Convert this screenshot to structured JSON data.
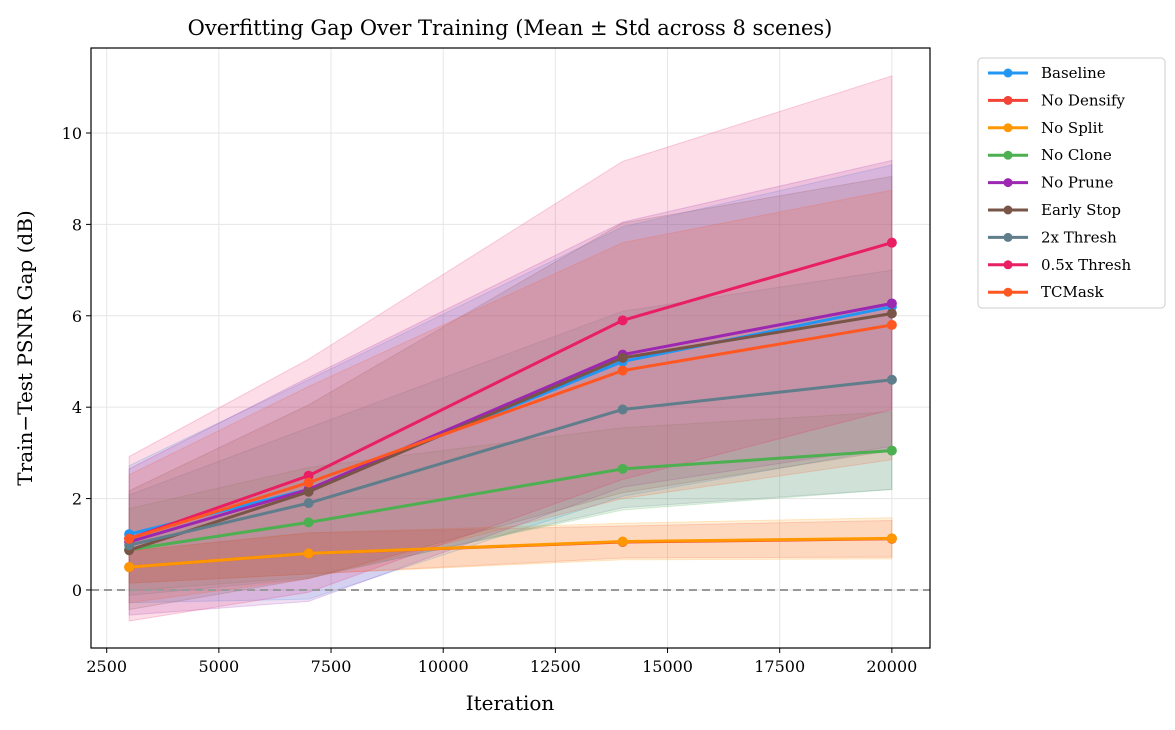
{
  "chart_data": {
    "type": "line",
    "title": "Overfitting Gap Over Training (Mean ± Std across 8 scenes)",
    "xlabel": "Iteration",
    "ylabel": "Train−Test PSNR Gap (dB)",
    "x": [
      3000,
      7000,
      14000,
      20000
    ],
    "xlim": [
      2150,
      20850
    ],
    "ylim": [
      -1.27,
      11.86
    ],
    "xticks": [
      2500,
      5000,
      7500,
      10000,
      12500,
      15000,
      17500,
      20000
    ],
    "yticks": [
      0,
      2,
      4,
      6,
      8,
      10
    ],
    "grid": true,
    "reference_line": {
      "y": 0,
      "style": "dashed",
      "color": "#999999"
    },
    "legend_position": "outside-right-top",
    "series": [
      {
        "name": "Baseline",
        "color": "#2196F3",
        "values": [
          1.22,
          2.2,
          5.0,
          6.2
        ],
        "std": [
          1.5,
          2.4,
          2.95,
          3.1
        ]
      },
      {
        "name": "No Densify",
        "color": "#F44336",
        "values": [
          0.5,
          0.8,
          1.05,
          1.12
        ],
        "std": [
          0.35,
          0.45,
          0.35,
          0.4
        ]
      },
      {
        "name": "No Split",
        "color": "#FF9800",
        "values": [
          0.5,
          0.8,
          1.06,
          1.13
        ],
        "std": [
          0.35,
          0.45,
          0.4,
          0.45
        ]
      },
      {
        "name": "No Clone",
        "color": "#4CAF50",
        "values": [
          0.88,
          1.48,
          2.65,
          3.05
        ],
        "std": [
          0.9,
          1.2,
          0.9,
          0.85
        ]
      },
      {
        "name": "No Prune",
        "color": "#9C27B0",
        "values": [
          1.05,
          2.2,
          5.15,
          6.27
        ],
        "std": [
          1.6,
          2.45,
          2.9,
          3.13
        ]
      },
      {
        "name": "Early Stop",
        "color": "#795548",
        "values": [
          0.87,
          2.15,
          5.08,
          6.05
        ],
        "std": [
          1.3,
          1.9,
          2.95,
          3.0
        ]
      },
      {
        "name": "2x Thresh",
        "color": "#607D8B",
        "values": [
          0.98,
          1.9,
          3.95,
          4.6
        ],
        "std": [
          1.1,
          1.65,
          2.15,
          2.4
        ]
      },
      {
        "name": "0.5x Thresh",
        "color": "#E91E63",
        "values": [
          1.12,
          2.5,
          5.9,
          7.6
        ],
        "std": [
          1.8,
          2.55,
          3.48,
          3.65
        ]
      },
      {
        "name": "TCMask",
        "color": "#FF5722",
        "values": [
          1.12,
          2.35,
          4.8,
          5.8
        ],
        "std": [
          1.4,
          2.1,
          2.8,
          2.95
        ]
      }
    ]
  }
}
